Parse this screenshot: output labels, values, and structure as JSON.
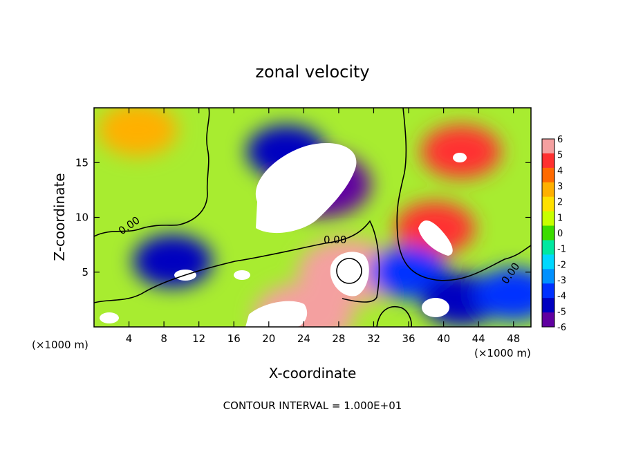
{
  "chart_data": {
    "type": "heatmap",
    "title": "zonal velocity",
    "xlabel": "X-coordinate",
    "ylabel": "Z-coordinate",
    "x_units_label": "(×1000 m)",
    "x_units_label_right": "(×1000 m)",
    "footer": "CONTOUR INTERVAL = 1.000E+01",
    "contour_label": "0.00",
    "xlim": [
      0,
      50
    ],
    "ylim": [
      0,
      20
    ],
    "x_ticks": [
      4,
      8,
      12,
      16,
      20,
      24,
      28,
      32,
      36,
      40,
      44,
      48
    ],
    "y_ticks": [
      5,
      10,
      15
    ],
    "colorbar": {
      "min": -6,
      "max": 6,
      "ticks": [
        6,
        5,
        4,
        3,
        2,
        1,
        0,
        -1,
        -2,
        -3,
        -4,
        -5,
        -6
      ],
      "colors": [
        "#f4a0a0",
        "#ff3030",
        "#ff6a00",
        "#ffb000",
        "#ffe000",
        "#c8ff00",
        "#3cdc00",
        "#00e8a0",
        "#00d8ff",
        "#0090ff",
        "#0030ff",
        "#0000c0",
        "#6000a0"
      ]
    },
    "field_features": [
      {
        "kind": "strong-negative",
        "x": 26,
        "z": 13,
        "value": -6.5
      },
      {
        "kind": "negative",
        "x": 22,
        "z": 16,
        "value": -4.5
      },
      {
        "kind": "negative",
        "x": 9,
        "z": 6,
        "value": -4.5
      },
      {
        "kind": "strong-positive",
        "x": 29,
        "z": 5,
        "value": 7
      },
      {
        "kind": "strong-positive",
        "x": 24,
        "z": 1,
        "value": 6.5
      },
      {
        "kind": "positive",
        "x": 42,
        "z": 16,
        "value": 5
      },
      {
        "kind": "positive",
        "x": 39,
        "z": 9,
        "value": 5
      },
      {
        "kind": "positive",
        "x": 5,
        "z": 18,
        "value": 3
      },
      {
        "kind": "negative",
        "x": 36,
        "z": 5,
        "value": -3.5
      },
      {
        "kind": "negative",
        "x": 42,
        "z": 2.5,
        "value": -5
      },
      {
        "kind": "negative",
        "x": 48,
        "z": 3,
        "value": -4
      }
    ]
  }
}
